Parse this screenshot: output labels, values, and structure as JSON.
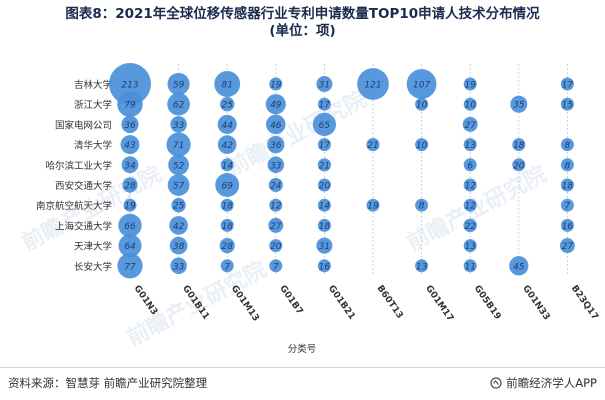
{
  "title_line1": "图表8：2021年全球位移传感器行业专利申请数量TOP10申请人技术分布情况",
  "title_line2": "(单位：项)",
  "source": "资料来源：智慧芽 前瞻产业研究院整理",
  "brand": "前瞻经济学人APP",
  "watermark": "前瞻产业研究院",
  "colors": {
    "bubble": "#4a8fd9",
    "bubble_text": "#1f3f75",
    "grid": "#b8c7e0",
    "title": "#1a2b4c"
  },
  "chart_data": {
    "type": "bubble",
    "xlabel": "分类号",
    "ylabel": "",
    "x": [
      "G01N3",
      "G01B11",
      "G01M13",
      "G01B7",
      "G01B21",
      "B60T13",
      "G01M17",
      "G05B19",
      "G01N33",
      "B23Q17"
    ],
    "y": [
      "吉林大学",
      "浙江大学",
      "国家电网公司",
      "清华大学",
      "哈尔滨工业大学",
      "西安交通大学",
      "南京航空航天大学",
      "上海交通大学",
      "天津大学",
      "长安大学"
    ],
    "values": [
      [
        213,
        59,
        81,
        19,
        31,
        121,
        107,
        19,
        null,
        17
      ],
      [
        79,
        62,
        25,
        49,
        17,
        null,
        10,
        10,
        35,
        15
      ],
      [
        36,
        33,
        44,
        46,
        65,
        null,
        null,
        27,
        null,
        null
      ],
      [
        43,
        71,
        42,
        36,
        17,
        21,
        10,
        13,
        18,
        8
      ],
      [
        34,
        52,
        14,
        33,
        21,
        null,
        null,
        6,
        20,
        8
      ],
      [
        28,
        57,
        69,
        24,
        20,
        null,
        null,
        12,
        null,
        18
      ],
      [
        19,
        25,
        18,
        12,
        14,
        19,
        8,
        12,
        null,
        7
      ],
      [
        66,
        42,
        18,
        27,
        18,
        null,
        null,
        22,
        null,
        16
      ],
      [
        64,
        38,
        28,
        20,
        31,
        null,
        null,
        13,
        null,
        27
      ],
      [
        77,
        33,
        7,
        7,
        16,
        null,
        13,
        11,
        45,
        null
      ]
    ]
  }
}
